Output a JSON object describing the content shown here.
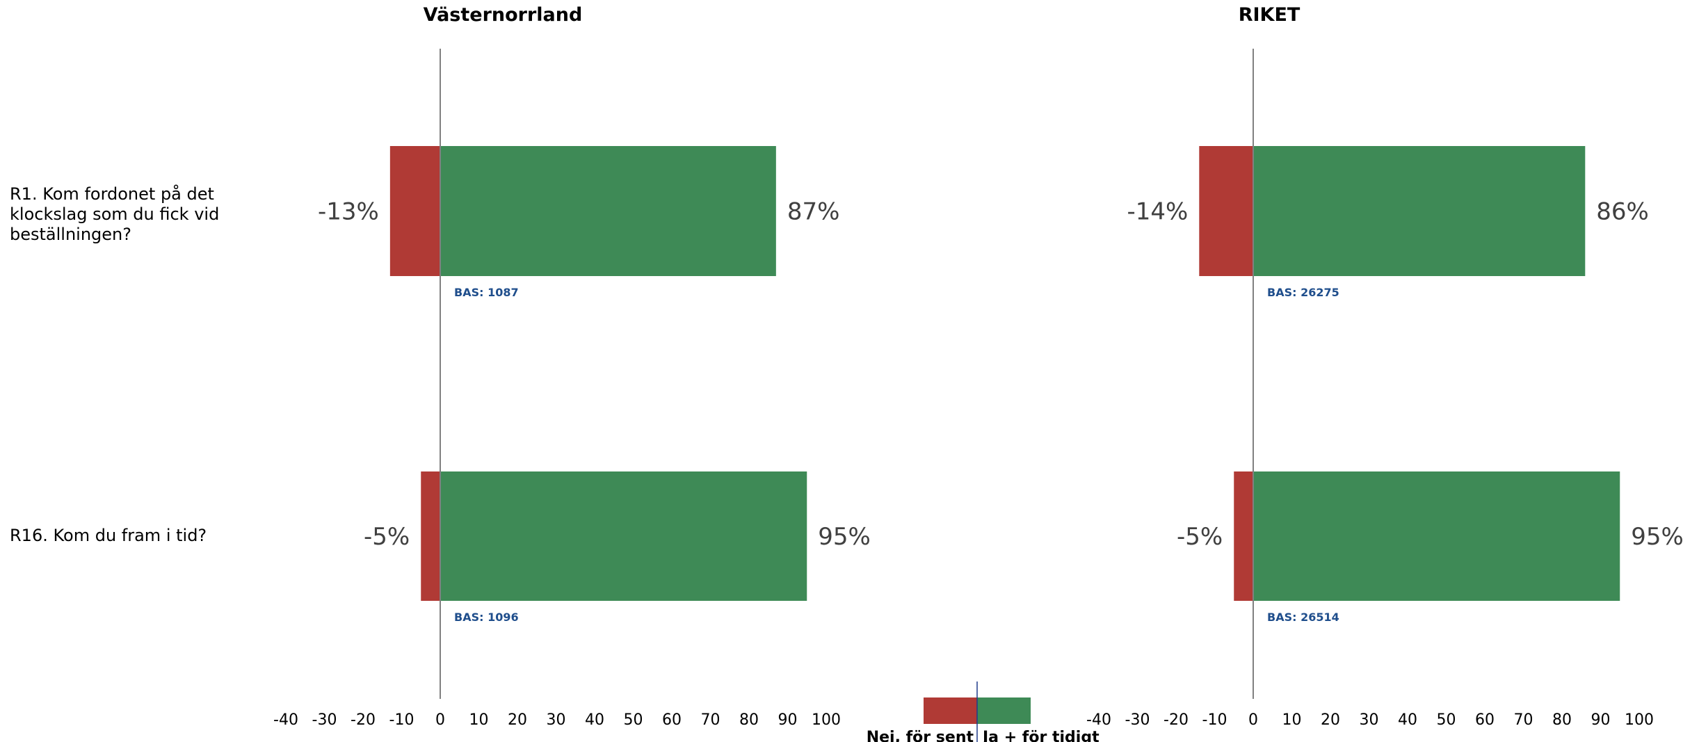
{
  "chart_data": [
    {
      "type": "bar",
      "orientation": "horizontal",
      "stacked": "diverging",
      "title": "Västernorrland",
      "categories": [
        "R1. Kom fordonet på det klockslag som du fick vid beställningen?",
        "R16. Kom du fram i tid?"
      ],
      "series": [
        {
          "name": "Nej, för sent",
          "color": "#b03a35",
          "values": [
            -13,
            -5
          ]
        },
        {
          "name": "Ja + för tidigt",
          "color": "#3e8a56",
          "values": [
            87,
            95
          ]
        }
      ],
      "neg_labels": [
        "-13%",
        "-5%"
      ],
      "pos_labels": [
        "87%",
        "95%"
      ],
      "bas": [
        "BAS:  1087",
        "BAS:  1096"
      ],
      "xlim": [
        -40,
        100
      ],
      "ticks": [
        "-40",
        "-30",
        "-20",
        "-10",
        "0",
        "10",
        "20",
        "30",
        "40",
        "50",
        "60",
        "70",
        "80",
        "90",
        "100"
      ]
    },
    {
      "type": "bar",
      "orientation": "horizontal",
      "stacked": "diverging",
      "title": "RIKET",
      "categories": [
        "R1. Kom fordonet på det klockslag som du fick vid beställningen?",
        "R16. Kom du fram i tid?"
      ],
      "series": [
        {
          "name": "Nej, för sent",
          "color": "#b03a35",
          "values": [
            -14,
            -5
          ]
        },
        {
          "name": "Ja + för tidigt",
          "color": "#3e8a56",
          "values": [
            86,
            95
          ]
        }
      ],
      "neg_labels": [
        "-14%",
        "-5%"
      ],
      "pos_labels": [
        "86%",
        "95%"
      ],
      "bas": [
        "BAS:  26275",
        "BAS:  26514"
      ],
      "xlim": [
        -40,
        100
      ],
      "ticks": [
        "-40",
        "-30",
        "-20",
        "-10",
        "0",
        "10",
        "20",
        "30",
        "40",
        "50",
        "60",
        "70",
        "80",
        "90",
        "100"
      ]
    }
  ],
  "questions": [
    [
      "R1. Kom fordonet på det",
      "klockslag som du fick vid",
      "beställningen?"
    ],
    [
      "R16. Kom du fram i tid?"
    ]
  ],
  "legend": {
    "neg_label": "Nej, för sent",
    "pos_label": "Ja + för tidigt",
    "neg_color": "#b03a35",
    "pos_color": "#3e8a56"
  }
}
